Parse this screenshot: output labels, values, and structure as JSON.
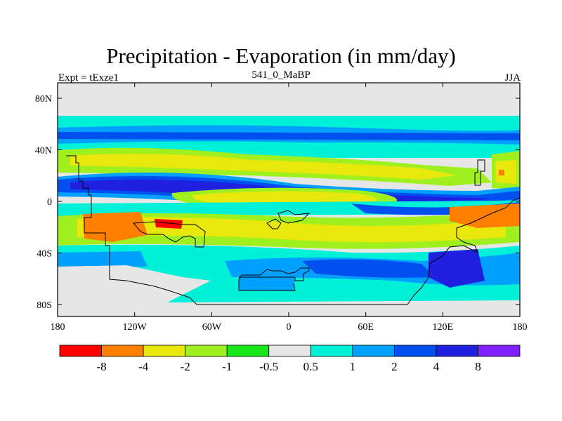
{
  "title": "Precipitation - Evaporation (in mm/day)",
  "left_label": "Expt = tExze1",
  "center_label": "541_0_MaBP",
  "right_label": "JJA",
  "y_ticks": [
    "80N",
    "40N",
    "0",
    "40S",
    "80S"
  ],
  "x_ticks": [
    "180",
    "120W",
    "60W",
    "0",
    "60E",
    "120E",
    "180"
  ],
  "colorbar": {
    "colors": [
      "#ff0000",
      "#ff8000",
      "#e8e80c",
      "#a0f020",
      "#18e818",
      "#e6e6e6",
      "#00f0d8",
      "#00a0ff",
      "#0050f0",
      "#2020e0",
      "#8020ff"
    ],
    "labels": [
      "-8",
      "-4",
      "-2",
      "-1",
      "-0.5",
      "0.5",
      "1",
      "2",
      "4",
      "8"
    ]
  },
  "colors": {
    "background": "#e6e6e6",
    "coastline": "#000000"
  }
}
